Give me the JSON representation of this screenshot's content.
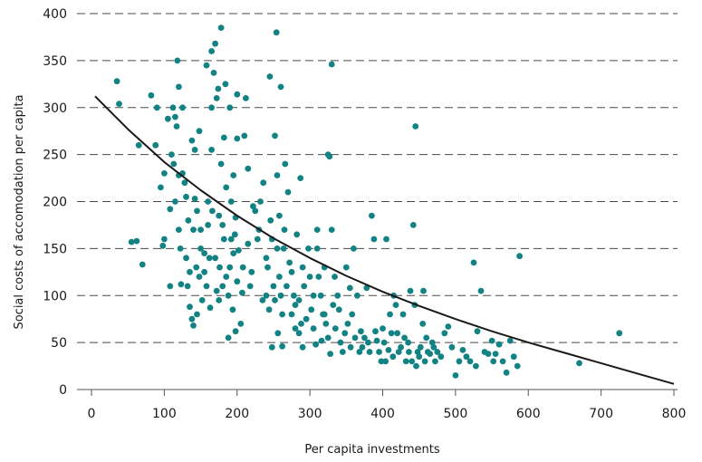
{
  "chart_data": {
    "type": "scatter",
    "title": "",
    "xlabel": "Per capita investments",
    "ylabel": "Social costs of accomodation per capita",
    "xlim": [
      0,
      800
    ],
    "ylim": [
      0,
      400
    ],
    "x_ticks": [
      "0",
      "100",
      "200",
      "300",
      "400",
      "500",
      "600",
      "700",
      "800"
    ],
    "y_ticks": [
      "0",
      "50",
      "100",
      "150",
      "200",
      "250",
      "300",
      "350",
      "400"
    ],
    "grid": "horizontal dashed",
    "colors": {
      "points": "#138283",
      "curve": "#1a1a1a",
      "grid": "#4a4a4a"
    },
    "trend_curve": [
      [
        5,
        312
      ],
      [
        50,
        277
      ],
      [
        100,
        242
      ],
      [
        150,
        212
      ],
      [
        200,
        185
      ],
      [
        250,
        161
      ],
      [
        300,
        140
      ],
      [
        350,
        121
      ],
      [
        400,
        104
      ],
      [
        450,
        89
      ],
      [
        500,
        75
      ],
      [
        550,
        62
      ],
      [
        600,
        50
      ],
      [
        650,
        39
      ],
      [
        700,
        28
      ],
      [
        750,
        17
      ],
      [
        800,
        6
      ]
    ],
    "points": [
      [
        35,
        328
      ],
      [
        38,
        304
      ],
      [
        65,
        260
      ],
      [
        55,
        157
      ],
      [
        62,
        158
      ],
      [
        70,
        133
      ],
      [
        82,
        313
      ],
      [
        88,
        260
      ],
      [
        90,
        300
      ],
      [
        95,
        215
      ],
      [
        98,
        153
      ],
      [
        100,
        160
      ],
      [
        100,
        230
      ],
      [
        105,
        288
      ],
      [
        108,
        110
      ],
      [
        108,
        192
      ],
      [
        110,
        250
      ],
      [
        112,
        300
      ],
      [
        113,
        240
      ],
      [
        115,
        290
      ],
      [
        115,
        200
      ],
      [
        117,
        280
      ],
      [
        118,
        350
      ],
      [
        120,
        322
      ],
      [
        120,
        228
      ],
      [
        120,
        170
      ],
      [
        122,
        150
      ],
      [
        123,
        112
      ],
      [
        125,
        300
      ],
      [
        125,
        230
      ],
      [
        128,
        220
      ],
      [
        130,
        205
      ],
      [
        130,
        140
      ],
      [
        132,
        110
      ],
      [
        133,
        180
      ],
      [
        135,
        125
      ],
      [
        135,
        88
      ],
      [
        138,
        265
      ],
      [
        138,
        75
      ],
      [
        140,
        68
      ],
      [
        140,
        170
      ],
      [
        142,
        203
      ],
      [
        142,
        255
      ],
      [
        144,
        130
      ],
      [
        145,
        190
      ],
      [
        145,
        80
      ],
      [
        148,
        275
      ],
      [
        148,
        120
      ],
      [
        150,
        150
      ],
      [
        150,
        170
      ],
      [
        152,
        95
      ],
      [
        155,
        145
      ],
      [
        155,
        125
      ],
      [
        158,
        110
      ],
      [
        158,
        345
      ],
      [
        160,
        200
      ],
      [
        160,
        175
      ],
      [
        162,
        140
      ],
      [
        163,
        87
      ],
      [
        165,
        255
      ],
      [
        165,
        300
      ],
      [
        165,
        360
      ],
      [
        166,
        190
      ],
      [
        168,
        337
      ],
      [
        170,
        368
      ],
      [
        170,
        140
      ],
      [
        172,
        105
      ],
      [
        172,
        310
      ],
      [
        174,
        320
      ],
      [
        175,
        95
      ],
      [
        175,
        185
      ],
      [
        176,
        130
      ],
      [
        178,
        240
      ],
      [
        178,
        385
      ],
      [
        180,
        175
      ],
      [
        180,
        110
      ],
      [
        182,
        268
      ],
      [
        182,
        160
      ],
      [
        184,
        325
      ],
      [
        185,
        215
      ],
      [
        185,
        120
      ],
      [
        188,
        55
      ],
      [
        188,
        100
      ],
      [
        190,
        300
      ],
      [
        190,
        130
      ],
      [
        192,
        160
      ],
      [
        192,
        200
      ],
      [
        194,
        85
      ],
      [
        195,
        145
      ],
      [
        195,
        228
      ],
      [
        197,
        165
      ],
      [
        198,
        183
      ],
      [
        198,
        62
      ],
      [
        200,
        267
      ],
      [
        200,
        314
      ],
      [
        200,
        115
      ],
      [
        202,
        148
      ],
      [
        205,
        70
      ],
      [
        207,
        103
      ],
      [
        208,
        130
      ],
      [
        210,
        270
      ],
      [
        212,
        310
      ],
      [
        215,
        235
      ],
      [
        215,
        155
      ],
      [
        218,
        110
      ],
      [
        220,
        125
      ],
      [
        222,
        195
      ],
      [
        225,
        190
      ],
      [
        228,
        160
      ],
      [
        230,
        170
      ],
      [
        232,
        200
      ],
      [
        235,
        95
      ],
      [
        236,
        220
      ],
      [
        240,
        100
      ],
      [
        240,
        140
      ],
      [
        242,
        130
      ],
      [
        244,
        85
      ],
      [
        245,
        333
      ],
      [
        246,
        180
      ],
      [
        248,
        45
      ],
      [
        248,
        160
      ],
      [
        250,
        110
      ],
      [
        252,
        270
      ],
      [
        252,
        95
      ],
      [
        254,
        380
      ],
      [
        255,
        228
      ],
      [
        255,
        150
      ],
      [
        256,
        60
      ],
      [
        258,
        185
      ],
      [
        258,
        120
      ],
      [
        260,
        322
      ],
      [
        260,
        100
      ],
      [
        262,
        46
      ],
      [
        262,
        80
      ],
      [
        264,
        150
      ],
      [
        265,
        170
      ],
      [
        266,
        240
      ],
      [
        268,
        110
      ],
      [
        270,
        210
      ],
      [
        272,
        135
      ],
      [
        275,
        80
      ],
      [
        275,
        125
      ],
      [
        278,
        100
      ],
      [
        280,
        65
      ],
      [
        280,
        90
      ],
      [
        282,
        165
      ],
      [
        285,
        95
      ],
      [
        285,
        60
      ],
      [
        287,
        225
      ],
      [
        288,
        70
      ],
      [
        290,
        130
      ],
      [
        290,
        45
      ],
      [
        292,
        110
      ],
      [
        295,
        75
      ],
      [
        298,
        150
      ],
      [
        300,
        120
      ],
      [
        302,
        85
      ],
      [
        305,
        65
      ],
      [
        305,
        100
      ],
      [
        308,
        48
      ],
      [
        310,
        170
      ],
      [
        310,
        150
      ],
      [
        312,
        120
      ],
      [
        315,
        100
      ],
      [
        316,
        52
      ],
      [
        318,
        80
      ],
      [
        320,
        130
      ],
      [
        320,
        80
      ],
      [
        322,
        70
      ],
      [
        325,
        55
      ],
      [
        325,
        250
      ],
      [
        327,
        248
      ],
      [
        328,
        38
      ],
      [
        330,
        346
      ],
      [
        330,
        170
      ],
      [
        332,
        90
      ],
      [
        334,
        120
      ],
      [
        335,
        65
      ],
      [
        338,
        100
      ],
      [
        340,
        85
      ],
      [
        342,
        50
      ],
      [
        345,
        40
      ],
      [
        348,
        60
      ],
      [
        350,
        130
      ],
      [
        352,
        70
      ],
      [
        355,
        108
      ],
      [
        356,
        45
      ],
      [
        358,
        80
      ],
      [
        360,
        150
      ],
      [
        362,
        55
      ],
      [
        365,
        100
      ],
      [
        368,
        40
      ],
      [
        370,
        62
      ],
      [
        372,
        45
      ],
      [
        375,
        55
      ],
      [
        378,
        108
      ],
      [
        380,
        50
      ],
      [
        382,
        40
      ],
      [
        385,
        185
      ],
      [
        388,
        160
      ],
      [
        390,
        62
      ],
      [
        392,
        52
      ],
      [
        395,
        40
      ],
      [
        398,
        30
      ],
      [
        400,
        65
      ],
      [
        402,
        50
      ],
      [
        404,
        30
      ],
      [
        405,
        160
      ],
      [
        408,
        42
      ],
      [
        410,
        80
      ],
      [
        412,
        60
      ],
      [
        414,
        35
      ],
      [
        415,
        100
      ],
      [
        418,
        90
      ],
      [
        420,
        60
      ],
      [
        422,
        40
      ],
      [
        425,
        45
      ],
      [
        428,
        80
      ],
      [
        430,
        55
      ],
      [
        432,
        30
      ],
      [
        435,
        50
      ],
      [
        436,
        40
      ],
      [
        438,
        105
      ],
      [
        440,
        30
      ],
      [
        442,
        175
      ],
      [
        444,
        90
      ],
      [
        445,
        280
      ],
      [
        446,
        25
      ],
      [
        448,
        40
      ],
      [
        450,
        35
      ],
      [
        452,
        45
      ],
      [
        455,
        70
      ],
      [
        456,
        105
      ],
      [
        458,
        30
      ],
      [
        460,
        55
      ],
      [
        462,
        40
      ],
      [
        465,
        38
      ],
      [
        468,
        50
      ],
      [
        470,
        45
      ],
      [
        472,
        30
      ],
      [
        475,
        40
      ],
      [
        480,
        35
      ],
      [
        485,
        60
      ],
      [
        490,
        67
      ],
      [
        495,
        45
      ],
      [
        500,
        15
      ],
      [
        505,
        30
      ],
      [
        510,
        42
      ],
      [
        515,
        35
      ],
      [
        520,
        30
      ],
      [
        525,
        135
      ],
      [
        528,
        25
      ],
      [
        530,
        62
      ],
      [
        535,
        105
      ],
      [
        540,
        40
      ],
      [
        545,
        38
      ],
      [
        550,
        52
      ],
      [
        552,
        30
      ],
      [
        555,
        38
      ],
      [
        560,
        48
      ],
      [
        565,
        30
      ],
      [
        570,
        18
      ],
      [
        575,
        52
      ],
      [
        580,
        35
      ],
      [
        585,
        25
      ],
      [
        588,
        142
      ],
      [
        670,
        28
      ],
      [
        725,
        60
      ]
    ]
  }
}
